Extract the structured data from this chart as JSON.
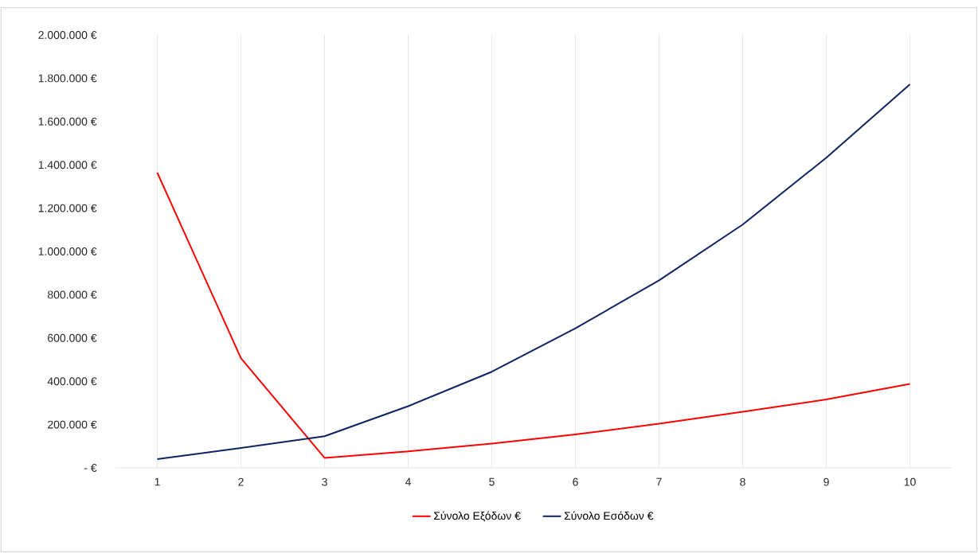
{
  "chart_data": {
    "type": "line",
    "categories": [
      "1",
      "2",
      "3",
      "4",
      "5",
      "6",
      "7",
      "8",
      "9",
      "10"
    ],
    "series": [
      {
        "name": "Σύνολο Εξόδων €",
        "color": "#ff0000",
        "values": [
          1364000,
          507000,
          46000,
          76000,
          112000,
          154000,
          204000,
          259000,
          316000,
          388000
        ]
      },
      {
        "name": "Σύνολο Εσόδων  €",
        "color": "#0c2461",
        "values": [
          40000,
          92000,
          146000,
          285000,
          444000,
          645000,
          866000,
          1124000,
          1433000,
          1772000
        ]
      }
    ],
    "ylim": [
      0,
      2000000
    ],
    "yticks": [
      {
        "value": 0,
        "label": "-   €"
      },
      {
        "value": 200000,
        "label": "200.000 €"
      },
      {
        "value": 400000,
        "label": "400.000 €"
      },
      {
        "value": 600000,
        "label": "600.000 €"
      },
      {
        "value": 800000,
        "label": "800.000 €"
      },
      {
        "value": 1000000,
        "label": "1.000.000 €"
      },
      {
        "value": 1200000,
        "label": "1.200.000 €"
      },
      {
        "value": 1400000,
        "label": "1.400.000 €"
      },
      {
        "value": 1600000,
        "label": "1.600.000 €"
      },
      {
        "value": 1800000,
        "label": "1.800.000 €"
      },
      {
        "value": 2000000,
        "label": "2.000.000 €"
      }
    ],
    "grid": "x",
    "legend": "bottom"
  }
}
